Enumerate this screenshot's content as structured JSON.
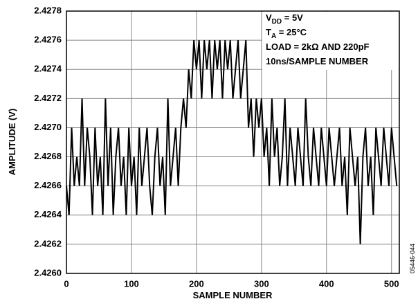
{
  "chart_data": {
    "type": "line",
    "x_label": "SAMPLE NUMBER",
    "y_label": "AMPLITUDE (V)",
    "figure_id": "05446-044",
    "annotations": [
      {
        "text": "V",
        "sub": "DD",
        "rest": " = 5V"
      },
      {
        "text": "T",
        "sub": "A",
        "rest": " = 25°C"
      },
      "LOAD = 2kΩ AND 220pF",
      "10ns/SAMPLE NUMBER"
    ],
    "xlim": [
      0,
      512
    ],
    "ylim": [
      2.426,
      2.4278
    ],
    "xticks": [
      0,
      100,
      200,
      300,
      400,
      500
    ],
    "yticks": [
      {
        "value": 2.426,
        "label": "2.4260"
      },
      {
        "value": 2.4262,
        "label": "2.4262"
      },
      {
        "value": 2.4264,
        "label": "2.4264"
      },
      {
        "value": 2.4266,
        "label": "2.4266"
      },
      {
        "value": 2.4268,
        "label": "2.4268"
      },
      {
        "value": 2.427,
        "label": "2.4270"
      },
      {
        "value": 2.4272,
        "label": "2.4272"
      },
      {
        "value": 2.4274,
        "label": "2.4274"
      },
      {
        "value": 2.4276,
        "label": "2.4276"
      },
      {
        "value": 2.4278,
        "label": "2.4278"
      }
    ],
    "grid": true,
    "color": "#000000",
    "x": [
      0,
      4,
      8,
      12,
      16,
      20,
      24,
      28,
      32,
      36,
      40,
      44,
      48,
      52,
      56,
      60,
      64,
      68,
      72,
      76,
      80,
      84,
      88,
      92,
      96,
      100,
      104,
      108,
      112,
      116,
      120,
      124,
      128,
      132,
      136,
      140,
      144,
      148,
      152,
      156,
      160,
      164,
      168,
      172,
      176,
      180,
      184,
      188,
      192,
      196,
      200,
      204,
      208,
      212,
      216,
      220,
      224,
      228,
      232,
      236,
      240,
      244,
      248,
      252,
      256,
      260,
      264,
      268,
      272,
      276,
      280,
      284,
      288,
      292,
      296,
      300,
      304,
      308,
      312,
      316,
      320,
      324,
      328,
      332,
      336,
      340,
      344,
      348,
      352,
      356,
      360,
      364,
      368,
      372,
      376,
      380,
      384,
      388,
      392,
      396,
      400,
      404,
      408,
      412,
      416,
      420,
      424,
      428,
      432,
      436,
      440,
      444,
      448,
      452,
      456,
      460,
      464,
      468,
      472,
      476,
      480,
      484,
      488,
      492,
      496,
      500,
      504,
      508
    ],
    "values": [
      2.4266,
      2.4264,
      2.427,
      2.4266,
      2.4268,
      2.4266,
      2.4272,
      2.4266,
      2.427,
      2.4268,
      2.4264,
      2.427,
      2.4266,
      2.4268,
      2.4264,
      2.4272,
      2.4266,
      2.427,
      2.4264,
      2.4268,
      2.427,
      2.4266,
      2.4268,
      2.4264,
      2.427,
      2.4266,
      2.4268,
      2.4264,
      2.427,
      2.4266,
      2.4268,
      2.427,
      2.4266,
      2.4264,
      2.4268,
      2.427,
      2.4266,
      2.4268,
      2.4264,
      2.4272,
      2.4266,
      2.4268,
      2.427,
      2.4266,
      2.427,
      2.4272,
      2.427,
      2.4274,
      2.4272,
      2.4276,
      2.4274,
      2.4276,
      2.4272,
      2.4276,
      2.4274,
      2.4276,
      2.4272,
      2.4276,
      2.4274,
      2.4276,
      2.4272,
      2.4276,
      2.4274,
      2.4276,
      2.4272,
      2.4274,
      2.4276,
      2.4272,
      2.4274,
      2.4276,
      2.427,
      2.4272,
      2.4268,
      2.4272,
      2.427,
      2.4272,
      2.4268,
      2.427,
      2.4266,
      2.4272,
      2.4268,
      2.427,
      2.4266,
      2.4268,
      2.4272,
      2.4266,
      2.427,
      2.4268,
      2.4266,
      2.427,
      2.4268,
      2.4266,
      2.4272,
      2.4268,
      2.4266,
      2.427,
      2.4268,
      2.4266,
      2.427,
      2.4268,
      2.4266,
      2.427,
      2.4268,
      2.4266,
      2.4268,
      2.427,
      2.4266,
      2.4268,
      2.4264,
      2.427,
      2.4268,
      2.4266,
      2.4268,
      2.4262,
      2.4268,
      2.427,
      2.4266,
      2.4268,
      2.4264,
      2.427,
      2.4268,
      2.4266,
      2.427,
      2.4268,
      2.4266,
      2.427,
      2.4268,
      2.4266
    ]
  }
}
